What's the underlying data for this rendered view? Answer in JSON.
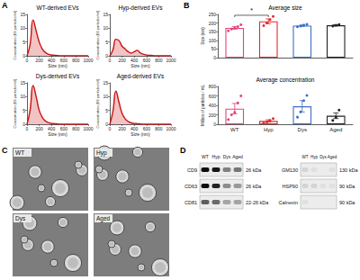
{
  "panel_labels": [
    "A",
    "B",
    "C",
    "D"
  ],
  "chart_data": [
    {
      "type": "line",
      "title": "WT-derived EVs",
      "xlabel": "Size (nm)",
      "ylabel": "Concentration (E6 particles/ml)",
      "x": [
        0,
        50,
        100,
        150,
        200,
        250,
        300,
        350,
        400,
        450,
        500,
        600,
        700,
        800,
        900,
        1000
      ],
      "values": [
        0,
        4,
        13,
        9,
        5,
        2.5,
        1.2,
        0.6,
        0.3,
        0.2,
        0.1,
        0,
        0,
        0,
        0,
        0
      ],
      "color": "#cc1111",
      "xlim": [
        0,
        1000
      ],
      "xticks": [
        0,
        200,
        400,
        600,
        800,
        1000
      ],
      "ylim": [
        0,
        15
      ],
      "yticks": [
        0,
        5,
        10,
        15
      ],
      "grid": false
    },
    {
      "type": "line",
      "title": "Hyp-derived EVs",
      "xlabel": "Size (nm)",
      "ylabel": "Concentration (E6 particles/ml)",
      "x": [
        0,
        50,
        100,
        150,
        200,
        250,
        300,
        350,
        400,
        450,
        500,
        600,
        700,
        800,
        900,
        1000
      ],
      "values": [
        0,
        2,
        6,
        5.5,
        3.5,
        2.5,
        1.5,
        1,
        1.5,
        2,
        1,
        0.3,
        0.1,
        0,
        0,
        0
      ],
      "color": "#cc1111",
      "xlim": [
        0,
        1000
      ],
      "xticks": [
        0,
        200,
        400,
        600,
        800,
        1000
      ],
      "ylim": [
        0,
        15
      ],
      "yticks": [
        0,
        5,
        10,
        15
      ],
      "grid": false
    },
    {
      "type": "line",
      "title": "Dys-derived EVs",
      "xlabel": "Size (nm)",
      "ylabel": "Concentration (E6 particles/ml)",
      "x": [
        0,
        50,
        100,
        150,
        200,
        250,
        300,
        350,
        400,
        450,
        500,
        600,
        700,
        800,
        900,
        1000
      ],
      "values": [
        0,
        5,
        14,
        10,
        5,
        2.5,
        1.2,
        0.6,
        0.3,
        0.2,
        0.1,
        0,
        0,
        0,
        0,
        0
      ],
      "color": "#cc1111",
      "xlim": [
        0,
        1000
      ],
      "xticks": [
        0,
        200,
        400,
        600,
        800,
        1000
      ],
      "ylim": [
        0,
        15
      ],
      "yticks": [
        0,
        5,
        10,
        15
      ],
      "grid": false
    },
    {
      "type": "line",
      "title": "Aged-derived EVs",
      "xlabel": "Size (nm)",
      "ylabel": "Concentration (E6 particles/ml)",
      "x": [
        0,
        50,
        100,
        150,
        200,
        250,
        300,
        350,
        400,
        450,
        500,
        600,
        700,
        800,
        900,
        1000
      ],
      "values": [
        0,
        4.5,
        12,
        8,
        4,
        2,
        1,
        0.5,
        0.3,
        0.2,
        0.1,
        0,
        0,
        0,
        0,
        0
      ],
      "color": "#cc1111",
      "xlim": [
        0,
        1000
      ],
      "xticks": [
        0,
        200,
        400,
        600,
        800,
        1000
      ],
      "ylim": [
        0,
        15
      ],
      "yticks": [
        0,
        5,
        10,
        15
      ],
      "grid": false
    },
    {
      "type": "bar",
      "title": "Average size",
      "ylabel": "Size (nm)",
      "categories": [
        "WT",
        "Hyp",
        "Dys",
        "Aged"
      ],
      "values": [
        172,
        210,
        185,
        187
      ],
      "errors": [
        8,
        14,
        4,
        3
      ],
      "points": [
        [
          155,
          165,
          172,
          180,
          190
        ],
        [
          185,
          200,
          220,
          238
        ],
        [
          178,
          182,
          188,
          192
        ],
        [
          183,
          187,
          191
        ]
      ],
      "colors": [
        "#e0457b",
        "#e32b2b",
        "#3d6fc9",
        "#222222"
      ],
      "ylim": [
        0,
        250
      ],
      "yticks": [
        0,
        50,
        100,
        150,
        200,
        250
      ],
      "grid": false,
      "tick_labels": "y",
      "annotations": [
        {
          "text": "*",
          "from": "WT",
          "to": "Hyp",
          "y": 245
        }
      ]
    },
    {
      "type": "bar",
      "title": "Average concentration",
      "ylabel": "Million of particles / mL",
      "categories": [
        "WT",
        "Hyp",
        "Dys",
        "Aged"
      ],
      "values": [
        330,
        70,
        380,
        180
      ],
      "errors": [
        110,
        25,
        120,
        60
      ],
      "points": [
        [
          100,
          200,
          250,
          450,
          600
        ],
        [
          30,
          50,
          80,
          120
        ],
        [
          150,
          260,
          500,
          610
        ],
        [
          80,
          150,
          300
        ]
      ],
      "colors": [
        "#e0457b",
        "#e32b2b",
        "#3d6fc9",
        "#222222"
      ],
      "ylim": [
        0,
        800
      ],
      "yticks": [
        0,
        200,
        400,
        600,
        800
      ],
      "grid": false
    }
  ],
  "images": {
    "labels": [
      "WT",
      "Hyp",
      "Dys",
      "Aged"
    ]
  },
  "blots": [
    {
      "lanes": [
        "WT",
        "Hyp",
        "Dys",
        "Aged"
      ],
      "rows": [
        {
          "name": "CD9",
          "size": "26 kDa",
          "intensity": [
            0.95,
            0.9,
            0.45,
            0.5
          ]
        },
        {
          "name": "CD63",
          "size": "26 kDa",
          "intensity": [
            0.95,
            0.85,
            0.4,
            0.35
          ]
        },
        {
          "name": "CD81",
          "size": "22-26 kDa",
          "intensity": [
            0.6,
            0.55,
            0.3,
            0.3
          ]
        }
      ]
    },
    {
      "lanes": [
        "WT",
        "Hyp",
        "Dys",
        "Aged"
      ],
      "rows": [
        {
          "name": "GM130",
          "size": "130 kDa",
          "intensity": [
            0.1,
            0.05,
            0,
            0.05
          ]
        },
        {
          "name": "HSP90",
          "size": "90 kDa",
          "intensity": [
            0.1,
            0.1,
            0.05,
            0.05
          ]
        },
        {
          "name": "Calnexin",
          "size": "90 kDa",
          "intensity": [
            0.05,
            0,
            0,
            0
          ]
        }
      ]
    }
  ]
}
